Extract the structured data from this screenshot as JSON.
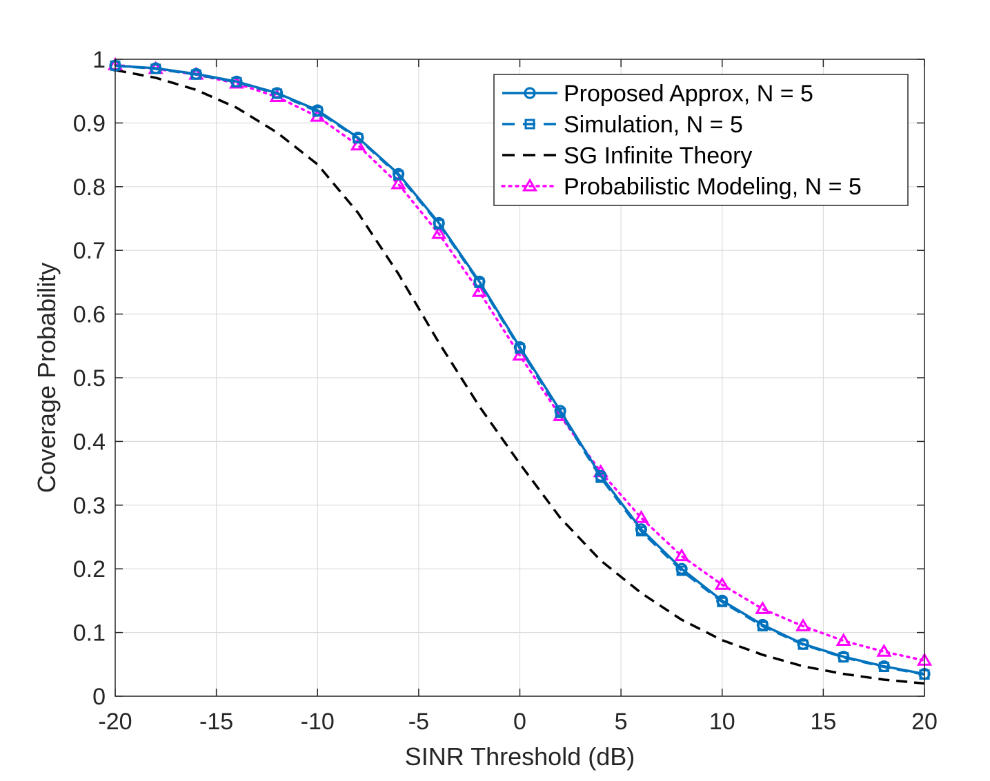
{
  "chart_data": {
    "type": "line",
    "title": "",
    "xlabel": "SINR Threshold (dB)",
    "ylabel": "Coverage Probability",
    "xlim": [
      -20,
      20
    ],
    "ylim": [
      0,
      1
    ],
    "grid": true,
    "legend_position": "top-right",
    "x_ticks": [
      -20,
      -15,
      -10,
      -5,
      0,
      5,
      10,
      15,
      20
    ],
    "x_tick_labels": [
      "-20",
      "-15",
      "-10",
      "-5",
      "0",
      "5",
      "10",
      "15",
      "20"
    ],
    "y_ticks": [
      0,
      0.1,
      0.2,
      0.3,
      0.4,
      0.5,
      0.6,
      0.7,
      0.8,
      0.9,
      1
    ],
    "y_tick_labels": [
      "0",
      "0.1",
      "0.2",
      "0.3",
      "0.4",
      "0.5",
      "0.6",
      "0.7",
      "0.8",
      "0.9",
      "1"
    ],
    "series": [
      {
        "name": "Proposed Approx, N = 5",
        "color": "#0072BD",
        "line_style": "solid",
        "marker": "circle",
        "x": [
          -20,
          -18,
          -16,
          -14,
          -12,
          -10,
          -8,
          -6,
          -4,
          -2,
          0,
          2,
          4,
          6,
          8,
          10,
          12,
          14,
          16,
          18,
          20
        ],
        "values": [
          0.99,
          0.986,
          0.977,
          0.965,
          0.947,
          0.92,
          0.877,
          0.82,
          0.743,
          0.651,
          0.548,
          0.448,
          0.346,
          0.262,
          0.2,
          0.15,
          0.112,
          0.082,
          0.062,
          0.047,
          0.035
        ]
      },
      {
        "name": "Simulation, N = 5",
        "color": "#0072BD",
        "line_style": "dashed",
        "marker": "square",
        "x": [
          -20,
          -18,
          -16,
          -14,
          -12,
          -10,
          -8,
          -6,
          -4,
          -2,
          0,
          2,
          4,
          6,
          8,
          10,
          12,
          14,
          16,
          18,
          20
        ],
        "values": [
          0.99,
          0.985,
          0.976,
          0.964,
          0.946,
          0.918,
          0.876,
          0.818,
          0.741,
          0.649,
          0.546,
          0.445,
          0.343,
          0.259,
          0.197,
          0.148,
          0.11,
          0.081,
          0.061,
          0.046,
          0.034
        ]
      },
      {
        "name": "SG Infinite Theory",
        "color": "#000000",
        "line_style": "dashed",
        "marker": "none",
        "x": [
          -20,
          -18,
          -16,
          -14,
          -12,
          -10,
          -8,
          -6,
          -4,
          -2,
          0,
          2,
          4,
          6,
          8,
          10,
          12,
          14,
          16,
          18,
          20
        ],
        "values": [
          0.983,
          0.971,
          0.952,
          0.924,
          0.885,
          0.835,
          0.759,
          0.663,
          0.555,
          0.455,
          0.365,
          0.28,
          0.213,
          0.162,
          0.12,
          0.088,
          0.065,
          0.047,
          0.035,
          0.026,
          0.02
        ]
      },
      {
        "name": "Probabilistic Modeling, N = 5",
        "color": "#FF00FF",
        "line_style": "dotted",
        "marker": "triangle",
        "x": [
          -20,
          -18,
          -16,
          -14,
          -12,
          -10,
          -8,
          -6,
          -4,
          -2,
          0,
          2,
          4,
          6,
          8,
          10,
          12,
          14,
          16,
          18,
          20
        ],
        "values": [
          0.991,
          0.985,
          0.976,
          0.962,
          0.941,
          0.91,
          0.865,
          0.804,
          0.726,
          0.635,
          0.535,
          0.44,
          0.352,
          0.28,
          0.22,
          0.175,
          0.137,
          0.11,
          0.087,
          0.07,
          0.056
        ]
      }
    ]
  }
}
